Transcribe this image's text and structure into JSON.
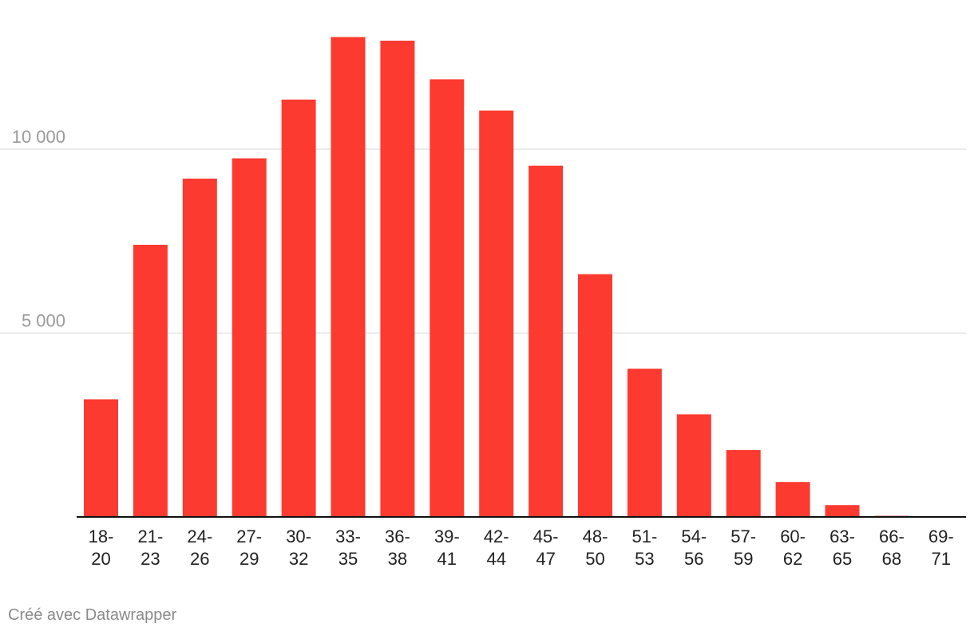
{
  "chart_data": {
    "type": "bar",
    "categories": [
      "18-20",
      "21-23",
      "24-26",
      "27-29",
      "30-32",
      "33-35",
      "36-38",
      "39-41",
      "42-44",
      "45-47",
      "48-50",
      "51-53",
      "54-56",
      "57-59",
      "60-62",
      "63-65",
      "66-68",
      "69-71"
    ],
    "category_lines": [
      [
        "18-",
        "20"
      ],
      [
        "21-",
        "23"
      ],
      [
        "24-",
        "26"
      ],
      [
        "27-",
        "29"
      ],
      [
        "30-",
        "32"
      ],
      [
        "33-",
        "35"
      ],
      [
        "36-",
        "38"
      ],
      [
        "39-",
        "41"
      ],
      [
        "42-",
        "44"
      ],
      [
        "45-",
        "47"
      ],
      [
        "48-",
        "50"
      ],
      [
        "51-",
        "53"
      ],
      [
        "54-",
        "56"
      ],
      [
        "57-",
        "59"
      ],
      [
        "60-",
        "62"
      ],
      [
        "63-",
        "65"
      ],
      [
        "66-",
        "68"
      ],
      [
        "69-",
        "71"
      ]
    ],
    "values": [
      3200,
      7400,
      9200,
      9750,
      11350,
      13050,
      12950,
      11900,
      11050,
      9550,
      6600,
      4030,
      2790,
      1820,
      950,
      320,
      30,
      5
    ],
    "ylim": [
      0,
      14000
    ],
    "y_ticks": [
      5000,
      10000
    ],
    "y_tick_labels": [
      "5 000",
      "10 000"
    ],
    "grid": true,
    "bar_color": "#fd3a30",
    "grid_color": "#e3e3e3",
    "axis_color": "#111111"
  },
  "footer": {
    "credit": "Créé avec Datawrapper"
  }
}
